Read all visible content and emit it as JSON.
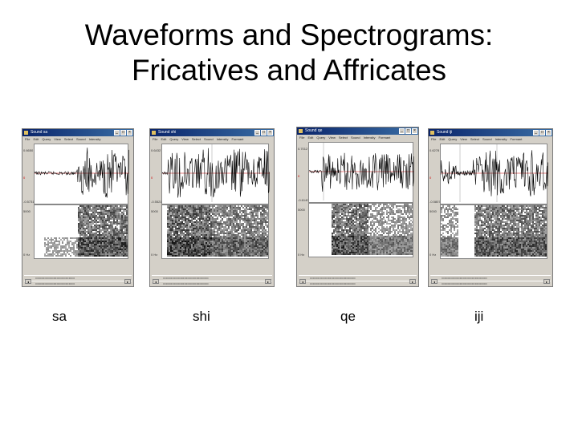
{
  "slide": {
    "title_line1": "Waveforms and Spectrograms:",
    "title_line2": "Fricatives and Affricates"
  },
  "windows": [
    {
      "key": "sa",
      "caption": "sa",
      "title": "Sound sa",
      "menus": [
        "File",
        "Edit",
        "Query",
        "View",
        "Select",
        "Sound",
        "Intensity",
        "Formant",
        "Pulses"
      ],
      "y_top": "0.6650",
      "y_bottom": "-0.5731",
      "freq_top": "5000",
      "freq_bottom": "0 Hz"
    },
    {
      "key": "shi",
      "caption": "shi",
      "title": "Sound shi",
      "menus": [
        "File",
        "Edit",
        "Query",
        "View",
        "Select",
        "Sound",
        "Intensity",
        "Formant",
        "Pulses"
      ],
      "y_top": "0.6432",
      "y_bottom": "-0.5521",
      "freq_top": "5000",
      "freq_bottom": "0 Hz"
    },
    {
      "key": "qe",
      "caption": "qe",
      "title": "Sound qe",
      "menus": [
        "File",
        "Edit",
        "Query",
        "View",
        "Select",
        "Sound",
        "Intensity",
        "Formant",
        "Pulses"
      ],
      "y_top": "0.7012",
      "y_bottom": "-0.6140",
      "freq_top": "5000",
      "freq_bottom": "0 Hz"
    },
    {
      "key": "iji",
      "caption": "iji",
      "title": "Sound iji",
      "menus": [
        "File",
        "Edit",
        "Query",
        "View",
        "Select",
        "Sound",
        "Intensity",
        "Formant",
        "Pulses"
      ],
      "y_top": "0.6278",
      "y_bottom": "-0.5807",
      "freq_top": "5000",
      "freq_bottom": "0 Hz"
    }
  ],
  "icons": {
    "minimize": "minimize-icon",
    "maximize": "maximize-icon",
    "close": "close-icon",
    "scroll_left": "scroll-left-icon",
    "scroll_right": "scroll-right-icon"
  }
}
